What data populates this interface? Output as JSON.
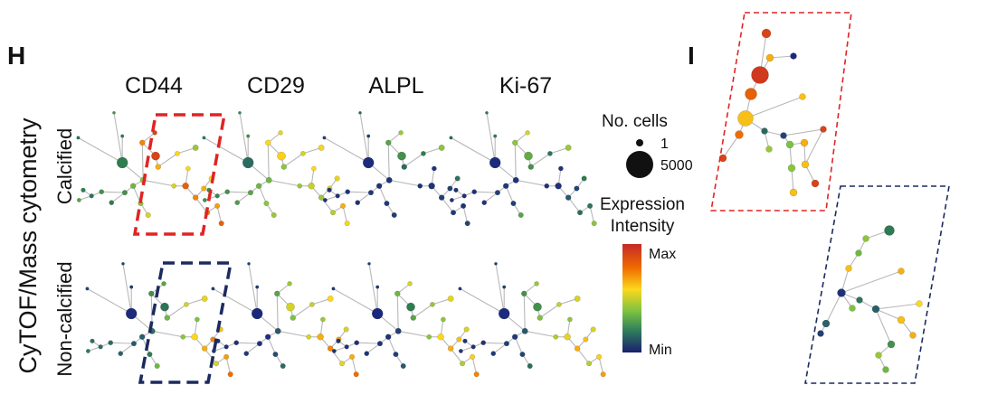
{
  "panels": {
    "h_label": "H",
    "i_label": "I"
  },
  "markers": [
    "CD44",
    "CD29",
    "ALPL",
    "Ki-67"
  ],
  "y_axis_label": "CyTOF/Mass cytometry",
  "rows": [
    "Calcified",
    "Non-calcified"
  ],
  "legend": {
    "size_title": "No. cells",
    "size_min": "1",
    "size_max": "5000",
    "color_title_line1": "Expression",
    "color_title_line2": "Intensity",
    "color_max": "Max",
    "color_min": "Min"
  },
  "colors": {
    "max": "#c62828",
    "mid_high": "#f5d21f",
    "mid": "#8bc34a",
    "mid_low": "#2e7d32",
    "min": "#1a237e",
    "calcified_box": "#e02424",
    "noncalcified_box": "#1c2a5e"
  }
}
